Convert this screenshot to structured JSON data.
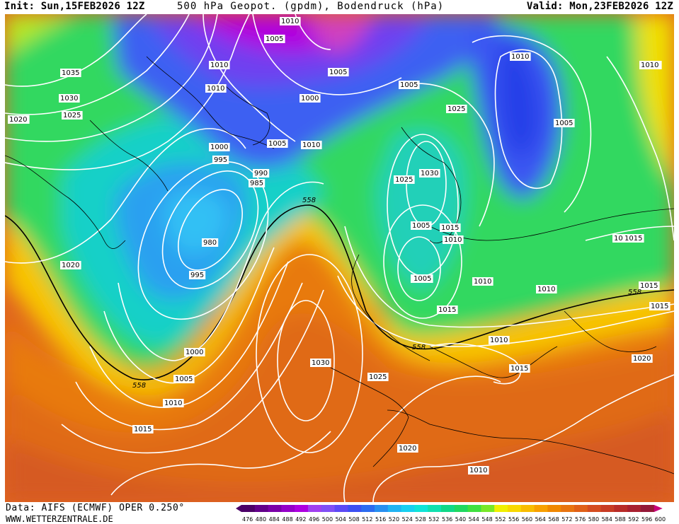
{
  "header": {
    "init": "Init: Sun,15FEB2026 12Z",
    "title": "500 hPa Geopot. (gpdm), Bodendruck (hPa)",
    "valid": "Valid: Mon,23FEB2026 12Z"
  },
  "footer": {
    "data_source": "Data: AIFS (ECMWF) OPER 0.250°",
    "website": "WWW.WETTERZENTRALE.DE"
  },
  "colorbar": {
    "values": [
      "476",
      "480",
      "484",
      "488",
      "492",
      "496",
      "500",
      "504",
      "508",
      "512",
      "516",
      "520",
      "524",
      "528",
      "532",
      "536",
      "540",
      "544",
      "548",
      "552",
      "556",
      "560",
      "564",
      "568",
      "572",
      "576",
      "580",
      "584",
      "588",
      "592",
      "596",
      "600"
    ],
    "colors": [
      "#4b0068",
      "#62008a",
      "#7a00a8",
      "#9400c8",
      "#ad00e0",
      "#a040f0",
      "#8050f5",
      "#5c4af5",
      "#3c50f2",
      "#2c6cf0",
      "#2890f0",
      "#20b4f2",
      "#18d0f0",
      "#10e4d8",
      "#10e0b0",
      "#10d888",
      "#20d860",
      "#40e040",
      "#78e828",
      "#f0f000",
      "#f8d800",
      "#f8bc00",
      "#f8a000",
      "#f08800",
      "#e87410",
      "#e06018",
      "#d44c20",
      "#c83c24",
      "#b82c28",
      "#a82030",
      "#941838",
      "#c8007a"
    ]
  },
  "map": {
    "pressure_labels": [
      {
        "text": "1035"
      },
      {
        "text": "1030"
      },
      {
        "text": "1025"
      },
      {
        "text": "1020"
      },
      {
        "text": "1020"
      },
      {
        "text": "1015"
      },
      {
        "text": "1010"
      },
      {
        "text": "1010"
      },
      {
        "text": "1010"
      },
      {
        "text": "1005"
      },
      {
        "text": "1005"
      },
      {
        "text": "1005"
      },
      {
        "text": "1005"
      },
      {
        "text": "1000"
      },
      {
        "text": "1000"
      },
      {
        "text": "995"
      },
      {
        "text": "990"
      },
      {
        "text": "985"
      },
      {
        "text": "980"
      },
      {
        "text": "995"
      },
      {
        "text": "1000"
      },
      {
        "text": "1005"
      },
      {
        "text": "1010"
      },
      {
        "text": "1015"
      },
      {
        "text": "1030"
      },
      {
        "text": "1025"
      },
      {
        "text": "1020"
      },
      {
        "text": "1020"
      },
      {
        "text": "1025"
      },
      {
        "text": "1030"
      },
      {
        "text": "1025"
      },
      {
        "text": "1020"
      },
      {
        "text": "1015"
      },
      {
        "text": "1010"
      },
      {
        "text": "1005"
      },
      {
        "text": "1010"
      },
      {
        "text": "1015"
      },
      {
        "text": "1010"
      },
      {
        "text": "1005"
      },
      {
        "text": "1010"
      },
      {
        "text": "1010"
      },
      {
        "text": "1015"
      },
      {
        "text": "1015"
      },
      {
        "text": "1010"
      },
      {
        "text": "1020"
      },
      {
        "text": "1015"
      },
      {
        "text": "1020"
      },
      {
        "text": "1010"
      },
      {
        "text": "1005"
      },
      {
        "text": "1015"
      },
      {
        "text": "1005"
      },
      {
        "text": "1020"
      },
      {
        "text": "1010"
      }
    ],
    "contour_558_labels": [
      {
        "text": "558"
      },
      {
        "text": "558"
      },
      {
        "text": "558"
      },
      {
        "text": "558"
      }
    ]
  }
}
